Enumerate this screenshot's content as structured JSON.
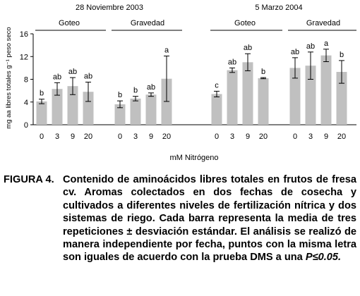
{
  "chart_data": {
    "type": "bar",
    "ylabel": "mg aa libres totales  g⁻¹ peso seco",
    "xlabel": "mM Nitrógeno",
    "ylim": [
      0,
      16
    ],
    "yticks": [
      0,
      4,
      8,
      12,
      16
    ],
    "categories": [
      "0",
      "3",
      "9",
      "20"
    ],
    "panels": [
      {
        "date": "28 Noviembre 2003",
        "groups": [
          {
            "name": "Goteo",
            "values": [
              4.1,
              6.3,
              6.8,
              5.8
            ],
            "errors": [
              0.4,
              1.1,
              1.5,
              1.7
            ],
            "letters": [
              "b",
              "ab",
              "ab",
              "ab"
            ]
          },
          {
            "name": "Gravedad",
            "values": [
              3.6,
              4.6,
              5.3,
              8.1
            ],
            "errors": [
              0.6,
              0.4,
              0.3,
              4.0
            ],
            "letters": [
              "b",
              "b",
              "ab",
              "a"
            ]
          }
        ]
      },
      {
        "date": "5 Marzo 2004",
        "groups": [
          {
            "name": "Goteo",
            "values": [
              5.4,
              9.6,
              11.0,
              8.2
            ],
            "errors": [
              0.5,
              0.4,
              1.5,
              0.1
            ],
            "letters": [
              "c",
              "ab",
              "ab",
              "b"
            ]
          },
          {
            "name": "Gravedad",
            "values": [
              10.0,
              10.4,
              12.2,
              9.3
            ],
            "errors": [
              1.8,
              2.4,
              1.1,
              2.0
            ],
            "letters": [
              "ab",
              "ab",
              "a",
              "b"
            ]
          }
        ]
      }
    ],
    "colors": {
      "bar": "#c0c0c0",
      "axis": "#000000"
    }
  },
  "caption": {
    "label": "FIGURA 4.",
    "text": "Contenido de aminoácidos libres totales en frutos de fresa cv. Aromas colectados en dos fechas de cosecha y cultivados a diferentes niveles de fertilización nítrica y dos sistemas de riego. Cada barra representa la media de tres repeticiones ± desviación estándar. El análisis se realizó de manera independiente por fecha, puntos con la misma letra son iguales de acuerdo con la prueba DMS a una ",
    "pvalue": "P≤0.05."
  }
}
